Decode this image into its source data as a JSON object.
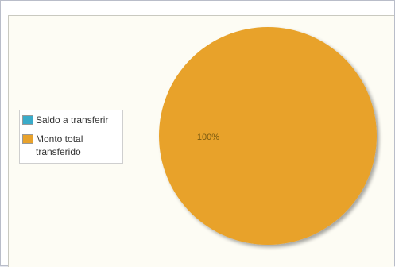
{
  "chart_data": {
    "type": "pie",
    "slices": [
      {
        "label": "Saldo a transferir",
        "value": 0,
        "color": "#3aabc9"
      },
      {
        "label": "Monto total transferido",
        "value": 100,
        "color": "#e8a22c"
      }
    ],
    "data_labels": [
      "",
      "100%"
    ],
    "legend_position": "left"
  },
  "legend": {
    "items": [
      {
        "label": "Saldo a transferir"
      },
      {
        "label": "Monto total transferido"
      }
    ]
  }
}
